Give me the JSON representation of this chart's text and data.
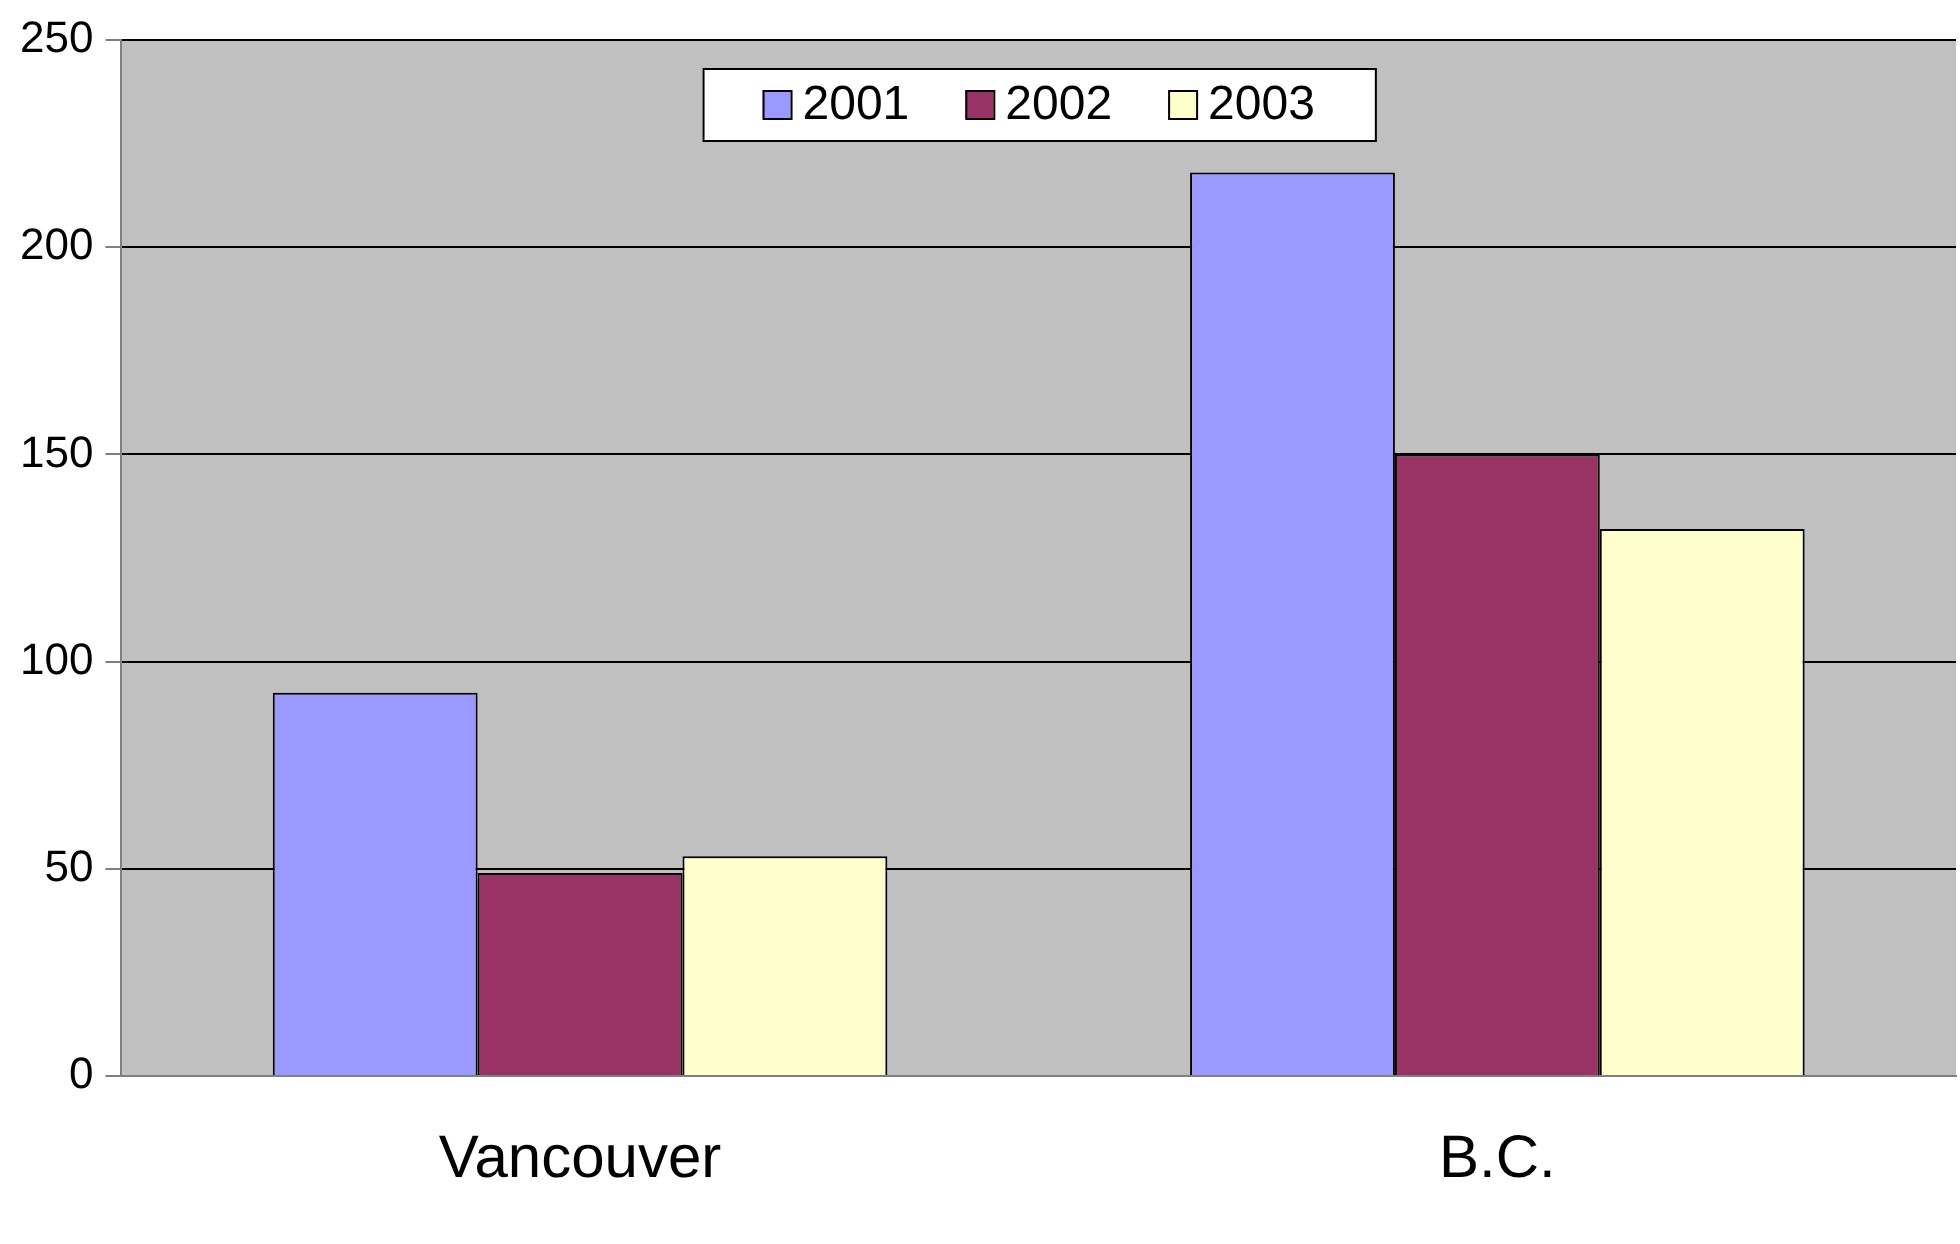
{
  "chart_data": {
    "type": "bar",
    "categories": [
      "Vancouver",
      "B.C."
    ],
    "series": [
      {
        "name": "2001",
        "color": "#9999ff",
        "values": [
          92.5,
          218
        ]
      },
      {
        "name": "2002",
        "color": "#993366",
        "values": [
          49,
          150
        ]
      },
      {
        "name": "2003",
        "color": "#ffffcc",
        "values": [
          53,
          132
        ]
      }
    ],
    "ylim": [
      0,
      250
    ],
    "yticks": [
      0,
      50,
      100,
      150,
      200,
      250
    ],
    "grid": "y",
    "legend": "top"
  }
}
